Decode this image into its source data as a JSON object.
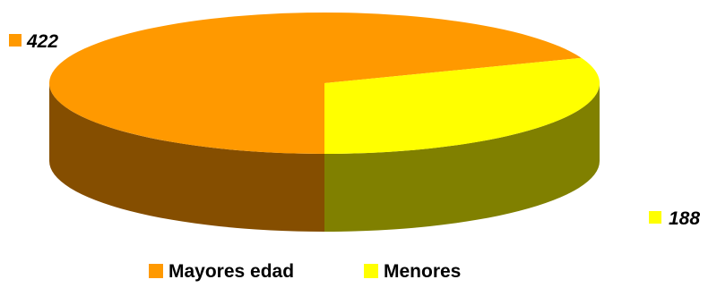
{
  "chart_data": {
    "type": "pie",
    "style": "3d",
    "categories": [
      "Mayores edad",
      "Menores"
    ],
    "values": [
      422,
      188
    ],
    "labels": [
      "422",
      "188"
    ],
    "colors": [
      "#FF9900",
      "#FFFF00"
    ],
    "side_colors": [
      "#854E00",
      "#808000"
    ],
    "legend_position": "bottom",
    "title": ""
  }
}
